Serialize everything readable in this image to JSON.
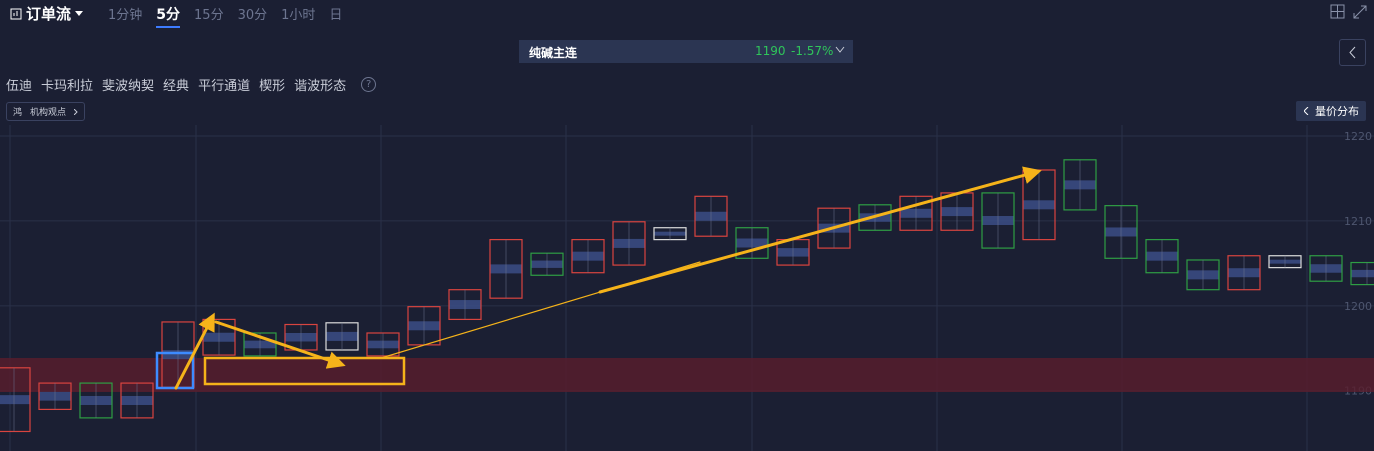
{
  "toolbar": {
    "title": "订单流",
    "intervals": [
      "1分钟",
      "5分",
      "15分",
      "30分",
      "1小时",
      "日"
    ],
    "active_interval": 1
  },
  "contract": {
    "name": "纯碱主连",
    "price": "1190",
    "change": "-1.57%"
  },
  "tools": [
    "伍迪",
    "卡玛利拉",
    "斐波纳契",
    "经典",
    "平行通道",
    "楔形",
    "谐波形态"
  ],
  "help": "?",
  "view": {
    "icon": "鸿",
    "label": "机构观点"
  },
  "side_button": "量价分布",
  "chart": {
    "ylim": [
      1182.9,
      1221.3
    ],
    "yticks": [
      1220,
      1210,
      1200,
      1190
    ],
    "colors": {
      "up": "#2f9e44",
      "down": "#d9443f",
      "flat": "#dcdcdc"
    },
    "candles": [
      {
        "high": 1192.7,
        "low": 1185.2,
        "kind": "down"
      },
      {
        "high": 1190.9,
        "low": 1187.8,
        "kind": "down"
      },
      {
        "high": 1190.9,
        "low": 1186.8,
        "kind": "up"
      },
      {
        "high": 1190.9,
        "low": 1186.8,
        "kind": "down"
      },
      {
        "high": 1198.1,
        "low": 1190.4,
        "kind": "down"
      },
      {
        "high": 1198.4,
        "low": 1194.2,
        "kind": "down"
      },
      {
        "high": 1196.8,
        "low": 1194.1,
        "kind": "up"
      },
      {
        "high": 1197.8,
        "low": 1194.8,
        "kind": "down"
      },
      {
        "high": 1198.0,
        "low": 1194.8,
        "kind": "flat"
      },
      {
        "high": 1196.8,
        "low": 1194.1,
        "kind": "down"
      },
      {
        "high": 1199.9,
        "low": 1195.4,
        "kind": "down"
      },
      {
        "high": 1201.9,
        "low": 1198.4,
        "kind": "down"
      },
      {
        "high": 1207.8,
        "low": 1200.9,
        "kind": "down"
      },
      {
        "high": 1206.2,
        "low": 1203.6,
        "kind": "up"
      },
      {
        "high": 1207.8,
        "low": 1203.9,
        "kind": "down"
      },
      {
        "high": 1209.9,
        "low": 1204.8,
        "kind": "down"
      },
      {
        "high": 1209.2,
        "low": 1207.8,
        "kind": "flat"
      },
      {
        "high": 1212.9,
        "low": 1208.2,
        "kind": "down"
      },
      {
        "high": 1209.2,
        "low": 1205.6,
        "kind": "up"
      },
      {
        "high": 1207.8,
        "low": 1204.8,
        "kind": "down"
      },
      {
        "high": 1211.5,
        "low": 1206.8,
        "kind": "down"
      },
      {
        "high": 1211.9,
        "low": 1208.9,
        "kind": "up"
      },
      {
        "high": 1212.9,
        "low": 1208.9,
        "kind": "down"
      },
      {
        "high": 1213.3,
        "low": 1208.9,
        "kind": "down"
      },
      {
        "high": 1213.3,
        "low": 1206.8,
        "kind": "up"
      },
      {
        "high": 1216.0,
        "low": 1207.8,
        "kind": "down"
      },
      {
        "high": 1217.2,
        "low": 1211.3,
        "kind": "up"
      },
      {
        "high": 1211.8,
        "low": 1205.6,
        "kind": "up"
      },
      {
        "high": 1207.8,
        "low": 1203.9,
        "kind": "up"
      },
      {
        "high": 1205.4,
        "low": 1201.9,
        "kind": "up"
      },
      {
        "high": 1205.9,
        "low": 1201.9,
        "kind": "down"
      },
      {
        "high": 1205.9,
        "low": 1204.5,
        "kind": "flat"
      },
      {
        "high": 1205.9,
        "low": 1202.9,
        "kind": "up"
      },
      {
        "high": 1205.1,
        "low": 1202.5,
        "kind": "up"
      }
    ]
  }
}
